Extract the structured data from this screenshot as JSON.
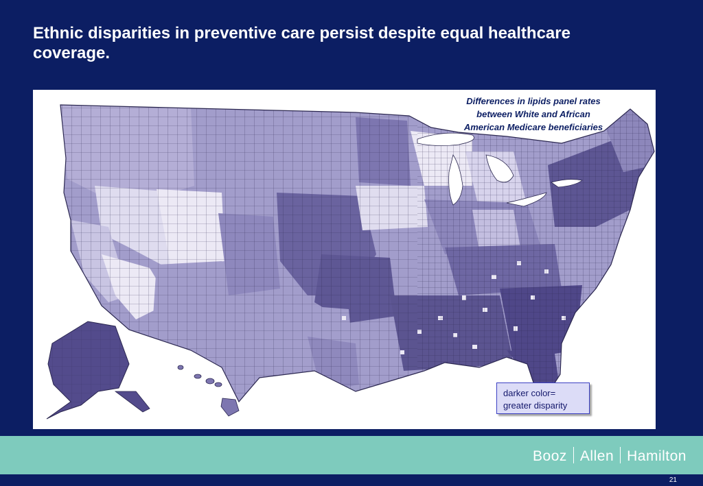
{
  "slide": {
    "title": "Ethnic disparities in preventive care persist despite equal healthcare coverage.",
    "page_number": "21"
  },
  "map": {
    "caption": "Differences in lipids panel rates between White and African American Medicare beneficiaries",
    "legend_line1": "darker color=",
    "legend_line2": "greater disparity",
    "colors": {
      "lightest": "#ece9f5",
      "light": "#c9c5e3",
      "medium": "#a29dcb",
      "dark": "#7d76b0",
      "darkest": "#534b8c",
      "border": "#2b2750"
    }
  },
  "footer": {
    "brand_1": "Booz",
    "brand_2": "Allen",
    "brand_3": "Hamilton",
    "band_color": "#7ecbbd"
  }
}
